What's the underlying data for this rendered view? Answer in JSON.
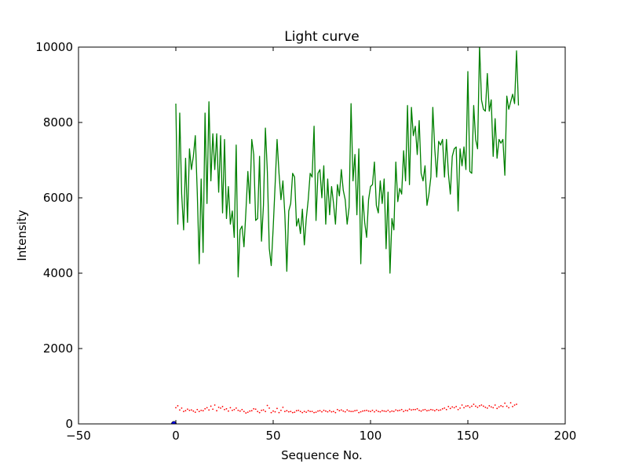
{
  "chart_data": {
    "type": "line",
    "title": "Light curve",
    "xlabel": "Sequence No.",
    "ylabel": "Intensity",
    "xlim": [
      -50,
      200
    ],
    "ylim": [
      0,
      10000
    ],
    "xticks": [
      -50,
      0,
      50,
      100,
      150,
      200
    ],
    "yticks": [
      0,
      2000,
      4000,
      6000,
      8000,
      10000
    ],
    "xtick_labels": [
      "−50",
      "0",
      "50",
      "100",
      "150",
      "200"
    ],
    "ytick_labels": [
      "0",
      "2000",
      "4000",
      "6000",
      "8000",
      "10000"
    ],
    "grid": false,
    "series": [
      {
        "style": "solid-line",
        "color": "#008000",
        "x_start": 0,
        "x_step": 1,
        "values": [
          8500,
          5300,
          8250,
          6100,
          5150,
          7050,
          5350,
          7300,
          6750,
          7100,
          7650,
          6150,
          4250,
          6500,
          4550,
          8250,
          5850,
          8550,
          6450,
          7700,
          6750,
          7700,
          6150,
          7650,
          5600,
          7550,
          5450,
          6300,
          5300,
          5650,
          4950,
          7400,
          3900,
          5150,
          5250,
          4700,
          5650,
          6700,
          5850,
          7550,
          7150,
          5400,
          5450,
          7100,
          4850,
          5800,
          7850,
          6700,
          4650,
          4200,
          5200,
          6350,
          7550,
          6650,
          5950,
          6450,
          5550,
          4050,
          5650,
          5850,
          6650,
          6550,
          5250,
          5450,
          5050,
          5700,
          4750,
          5450,
          5950,
          6650,
          6550,
          7900,
          5400,
          6650,
          6750,
          6000,
          6850,
          5300,
          6500,
          5550,
          6300,
          5850,
          5300,
          6350,
          6050,
          6750,
          6200,
          5950,
          5300,
          5750,
          8500,
          6450,
          7150,
          5550,
          7300,
          4250,
          6050,
          5350,
          4950,
          5950,
          6300,
          6350,
          6950,
          5800,
          5600,
          6450,
          5850,
          6500,
          4650,
          6150,
          4000,
          5450,
          5150,
          6950,
          5900,
          6250,
          6100,
          7250,
          6450,
          8450,
          6350,
          8400,
          7650,
          7900,
          7150,
          8050,
          6650,
          6450,
          6850,
          5800,
          6100,
          6550,
          8400,
          7300,
          6550,
          7500,
          7400,
          7550,
          6550,
          7550,
          6650,
          6100,
          7100,
          7300,
          7350,
          5650,
          7300,
          6850,
          7350,
          6750,
          9350,
          6700,
          6650,
          8450,
          7550,
          7300,
          10050,
          8600,
          8350,
          8300,
          9300,
          8300,
          8600,
          7100,
          8100,
          7050,
          7550,
          7450,
          7550,
          6600,
          8700,
          8350,
          8550,
          8750,
          8500,
          9900,
          8450
        ]
      },
      {
        "style": "dotted-markers",
        "color": "#ff0000",
        "x_start": 0,
        "x_step": 1,
        "values": [
          430,
          480,
          370,
          420,
          330,
          350,
          390,
          360,
          370,
          340,
          310,
          380,
          330,
          360,
          350,
          400,
          430,
          370,
          470,
          390,
          500,
          350,
          440,
          420,
          460,
          380,
          400,
          340,
          430,
          360,
          380,
          420,
          360,
          340,
          380,
          330,
          290,
          310,
          340,
          350,
          400,
          390,
          330,
          300,
          360,
          370,
          330,
          490,
          420,
          300,
          340,
          320,
          410,
          300,
          360,
          440,
          330,
          350,
          320,
          330,
          300,
          310,
          350,
          360,
          330,
          300,
          330,
          310,
          350,
          330,
          330,
          300,
          310,
          340,
          350,
          320,
          360,
          340,
          320,
          350,
          320,
          330,
          300,
          380,
          350,
          370,
          340,
          320,
          370,
          340,
          330,
          330,
          350,
          360,
          300,
          320,
          340,
          350,
          360,
          340,
          330,
          360,
          320,
          360,
          330,
          320,
          350,
          340,
          330,
          360,
          320,
          340,
          330,
          370,
          350,
          360,
          380,
          330,
          360,
          350,
          390,
          370,
          380,
          380,
          400,
          360,
          340,
          370,
          380,
          350,
          360,
          380,
          370,
          350,
          380,
          360,
          370,
          400,
          420,
          380,
          460,
          410,
          450,
          430,
          460,
          380,
          420,
          500,
          430,
          470,
          480,
          440,
          470,
          520,
          470,
          440,
          480,
          500,
          470,
          440,
          420,
          480,
          450,
          430,
          500,
          410,
          450,
          480,
          460,
          550,
          470,
          430,
          560,
          460,
          500,
          520
        ]
      },
      {
        "style": "marker",
        "color": "#0000ff",
        "x": [
          -1
        ],
        "values": [
          0
        ]
      }
    ]
  }
}
